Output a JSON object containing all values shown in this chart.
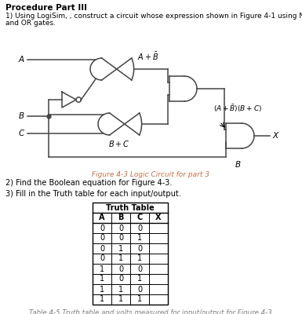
{
  "title": "Procedure Part III",
  "intro_line1": "1) Using LogiSim, , construct a circuit whose expression shown in Figure 4-1 using NOT, AND",
  "intro_line2": "and OR gates.",
  "figure_caption": "Figure 4-3 Logic Circuit for part 3",
  "q2_text": "2) Find the Boolean equation for Figure 4-3.",
  "q3_text": "3) Fill in the Truth table for each input/output.",
  "table_title": "Truth Table",
  "table_headers": [
    "A",
    "B",
    "C",
    "X"
  ],
  "table_data": [
    [
      "0",
      "0",
      "0",
      ""
    ],
    [
      "0",
      "0",
      "1",
      ""
    ],
    [
      "0",
      "1",
      "0",
      ""
    ],
    [
      "0",
      "1",
      "1",
      ""
    ],
    [
      "1",
      "0",
      "0",
      ""
    ],
    [
      "1",
      "0",
      "1",
      ""
    ],
    [
      "1",
      "1",
      "0",
      ""
    ],
    [
      "1",
      "1",
      "1",
      ""
    ]
  ],
  "table_caption": "Table 4-5 Truth table and volts measured for input/output for Figure 4-3",
  "bg_color": "#ffffff",
  "text_color": "#000000",
  "caption_color": "#c0714a",
  "table_caption_color": "#7f7f7f"
}
